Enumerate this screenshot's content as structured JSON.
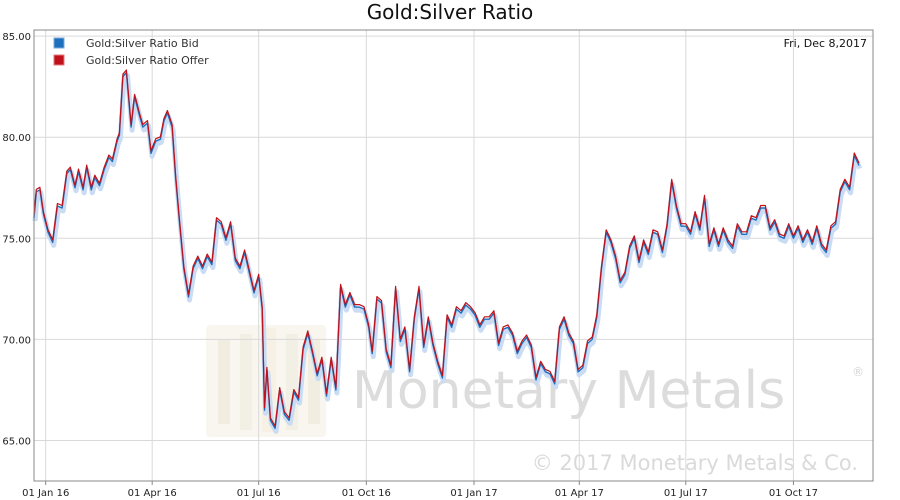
{
  "chart_data": {
    "type": "line",
    "title": "Gold:Silver Ratio",
    "date_label": "Fri, Dec 8,2017",
    "watermark": {
      "brand": "Monetary Metals",
      "registered": "®",
      "copyright": "© 2017 Monetary Metals & Co."
    },
    "xlabel": "",
    "ylabel": "",
    "ylim": [
      63,
      85.3
    ],
    "yticks": [
      65,
      70,
      75,
      80,
      85
    ],
    "ytick_labels": [
      "65.00",
      "70.00",
      "75.00",
      "80.00",
      "85.00"
    ],
    "xlim": [
      "2015-12-22",
      "2017-12-08"
    ],
    "xticks": [
      {
        "date": "2016-01-01",
        "label": "01 Jan 16"
      },
      {
        "date": "2016-04-01",
        "label": "01 Apr 16"
      },
      {
        "date": "2016-07-01",
        "label": "01 Jul 16"
      },
      {
        "date": "2016-10-01",
        "label": "01 Oct 16"
      },
      {
        "date": "2017-01-01",
        "label": "01 Jan 17"
      },
      {
        "date": "2017-04-01",
        "label": "01 Apr 17"
      },
      {
        "date": "2017-07-01",
        "label": "01 Jul 17"
      },
      {
        "date": "2017-10-01",
        "label": "01 Oct 17"
      }
    ],
    "grid": true,
    "legend_position": "top-left",
    "series": [
      {
        "name": "Gold:Silver Ratio Bid",
        "color": "#1f6fbf"
      },
      {
        "name": "Gold:Silver Ratio Offer",
        "color": "#c0111a"
      }
    ],
    "offer_minus_bid": 0.12,
    "x": [
      "2015-12-22",
      "2015-12-24",
      "2015-12-27",
      "2015-12-30",
      "2016-01-03",
      "2016-01-07",
      "2016-01-11",
      "2016-01-15",
      "2016-01-19",
      "2016-01-22",
      "2016-01-26",
      "2016-01-29",
      "2016-02-02",
      "2016-02-05",
      "2016-02-09",
      "2016-02-12",
      "2016-02-16",
      "2016-02-20",
      "2016-02-24",
      "2016-02-27",
      "2016-03-02",
      "2016-03-04",
      "2016-03-07",
      "2016-03-10",
      "2016-03-14",
      "2016-03-17",
      "2016-03-21",
      "2016-03-24",
      "2016-03-28",
      "2016-03-31",
      "2016-04-04",
      "2016-04-08",
      "2016-04-11",
      "2016-04-14",
      "2016-04-18",
      "2016-04-21",
      "2016-04-24",
      "2016-04-28",
      "2016-05-02",
      "2016-05-06",
      "2016-05-10",
      "2016-05-14",
      "2016-05-18",
      "2016-05-22",
      "2016-05-26",
      "2016-05-30",
      "2016-06-03",
      "2016-06-07",
      "2016-06-11",
      "2016-06-15",
      "2016-06-19",
      "2016-06-23",
      "2016-06-27",
      "2016-07-01",
      "2016-07-04",
      "2016-07-06",
      "2016-07-08",
      "2016-07-11",
      "2016-07-15",
      "2016-07-19",
      "2016-07-23",
      "2016-07-27",
      "2016-07-31",
      "2016-08-04",
      "2016-08-08",
      "2016-08-12",
      "2016-08-16",
      "2016-08-20",
      "2016-08-24",
      "2016-08-28",
      "2016-09-01",
      "2016-09-05",
      "2016-09-09",
      "2016-09-13",
      "2016-09-17",
      "2016-09-21",
      "2016-09-25",
      "2016-09-29",
      "2016-10-03",
      "2016-10-06",
      "2016-10-10",
      "2016-10-14",
      "2016-10-18",
      "2016-10-22",
      "2016-10-26",
      "2016-10-30",
      "2016-11-03",
      "2016-11-07",
      "2016-11-11",
      "2016-11-15",
      "2016-11-19",
      "2016-11-23",
      "2016-11-27",
      "2016-12-01",
      "2016-12-05",
      "2016-12-09",
      "2016-12-13",
      "2016-12-17",
      "2016-12-21",
      "2016-12-25",
      "2016-12-29",
      "2017-01-02",
      "2017-01-06",
      "2017-01-10",
      "2017-01-14",
      "2017-01-18",
      "2017-01-22",
      "2017-01-26",
      "2017-01-30",
      "2017-02-03",
      "2017-02-07",
      "2017-02-11",
      "2017-02-15",
      "2017-02-19",
      "2017-02-23",
      "2017-02-27",
      "2017-03-03",
      "2017-03-07",
      "2017-03-11",
      "2017-03-15",
      "2017-03-19",
      "2017-03-23",
      "2017-03-27",
      "2017-03-31",
      "2017-04-04",
      "2017-04-08",
      "2017-04-12",
      "2017-04-16",
      "2017-04-20",
      "2017-04-24",
      "2017-04-28",
      "2017-05-02",
      "2017-05-06",
      "2017-05-10",
      "2017-05-14",
      "2017-05-18",
      "2017-05-22",
      "2017-05-26",
      "2017-05-30",
      "2017-06-03",
      "2017-06-07",
      "2017-06-11",
      "2017-06-15",
      "2017-06-19",
      "2017-06-23",
      "2017-06-27",
      "2017-07-01",
      "2017-07-05",
      "2017-07-09",
      "2017-07-13",
      "2017-07-17",
      "2017-07-21",
      "2017-07-25",
      "2017-07-29",
      "2017-08-02",
      "2017-08-06",
      "2017-08-10",
      "2017-08-14",
      "2017-08-18",
      "2017-08-22",
      "2017-08-26",
      "2017-08-30",
      "2017-09-03",
      "2017-09-07",
      "2017-09-11",
      "2017-09-15",
      "2017-09-19",
      "2017-09-23",
      "2017-09-27",
      "2017-10-01",
      "2017-10-05",
      "2017-10-09",
      "2017-10-13",
      "2017-10-17",
      "2017-10-21",
      "2017-10-25",
      "2017-10-29",
      "2017-11-02",
      "2017-11-06",
      "2017-11-10",
      "2017-11-14",
      "2017-11-18",
      "2017-11-22",
      "2017-11-26",
      "2017-11-30",
      "2017-12-03",
      "2017-12-05",
      "2017-12-06",
      "2017-12-07",
      "2017-12-08"
    ],
    "bid": [
      76.0,
      77.3,
      77.4,
      76.2,
      75.3,
      74.8,
      76.6,
      76.5,
      78.2,
      78.4,
      77.5,
      78.3,
      77.4,
      78.5,
      77.4,
      78.0,
      77.6,
      78.4,
      79.0,
      78.8,
      79.8,
      80.1,
      83.0,
      83.2,
      80.5,
      82.0,
      81.1,
      80.5,
      80.7,
      79.2,
      79.8,
      79.9,
      80.8,
      81.2,
      80.5,
      78.0,
      76.0,
      73.5,
      72.1,
      73.5,
      74.0,
      73.5,
      74.1,
      73.7,
      75.9,
      75.7,
      74.9,
      75.7,
      73.9,
      73.5,
      74.3,
      73.3,
      72.3,
      73.1,
      71.5,
      66.5,
      68.5,
      66.0,
      65.6,
      67.5,
      66.3,
      66.0,
      67.4,
      67.0,
      69.5,
      70.3,
      69.3,
      68.2,
      69.0,
      67.2,
      69.0,
      67.5,
      72.6,
      71.6,
      72.2,
      71.6,
      71.6,
      71.5,
      70.6,
      69.3,
      72.0,
      71.8,
      69.4,
      68.6,
      72.5,
      69.9,
      70.5,
      68.4,
      71.0,
      72.5,
      69.6,
      71.0,
      69.7,
      68.8,
      68.1,
      71.1,
      70.6,
      71.5,
      71.3,
      71.7,
      71.5,
      71.2,
      70.6,
      71.0,
      71.0,
      71.3,
      69.7,
      70.5,
      70.6,
      70.2,
      69.3,
      69.8,
      70.1,
      69.6,
      68.0,
      68.8,
      68.4,
      68.3,
      67.8,
      70.5,
      71.0,
      70.2,
      69.8,
      68.4,
      68.6,
      69.8,
      70.0,
      71.1,
      73.5,
      75.3,
      74.8,
      74.0,
      72.8,
      73.2,
      74.5,
      75.0,
      73.8,
      74.8,
      74.2,
      75.3,
      75.2,
      74.3,
      75.6,
      77.8,
      76.5,
      75.6,
      75.6,
      75.2,
      76.2,
      75.4,
      77.0,
      74.6,
      75.4,
      74.6,
      75.4,
      74.8,
      74.5,
      75.6,
      75.2,
      75.2,
      76.0,
      75.9,
      76.5,
      76.5,
      75.4,
      75.8,
      75.1,
      75.0,
      75.6,
      75.0,
      75.5,
      74.8,
      75.3,
      74.7,
      75.5,
      74.6,
      74.3,
      75.5,
      75.7,
      77.3,
      77.8,
      77.4,
      79.1,
      78.6
    ]
  }
}
